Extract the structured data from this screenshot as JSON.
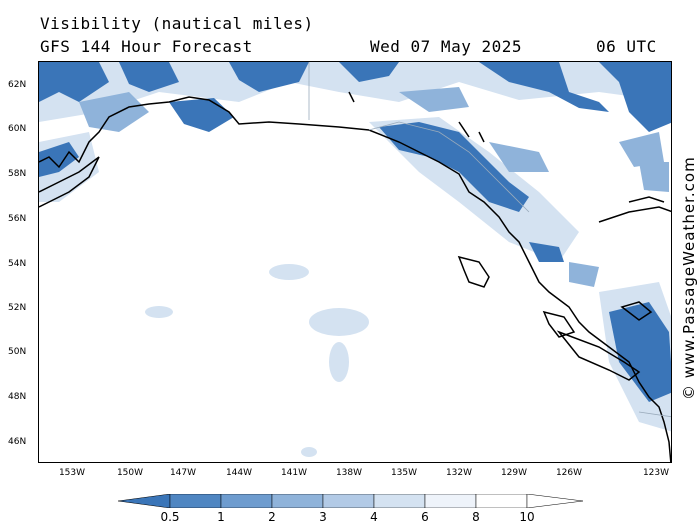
{
  "header": {
    "title": "Visibility (nautical miles)",
    "model": "GFS 144 Hour Forecast",
    "date": "Wed 07 May 2025",
    "time": "06 UTC"
  },
  "axes": {
    "lat_labels": [
      "62N",
      "60N",
      "58N",
      "56N",
      "54N",
      "52N",
      "50N",
      "48N",
      "46N"
    ],
    "lon_labels": [
      "153W",
      "150W",
      "147W",
      "144W",
      "141W",
      "138W",
      "135W",
      "132W",
      "129W",
      "126W",
      "123W"
    ]
  },
  "legend": {
    "values": [
      "0.5",
      "1",
      "2",
      "3",
      "4",
      "6",
      "8",
      "10"
    ],
    "colors": [
      "#3a75b8",
      "#4f86c2",
      "#6e9ccf",
      "#8fb3da",
      "#b2cae6",
      "#d4e2f1",
      "#eef3fa",
      "#ffffff"
    ]
  },
  "credit": "© www.PassageWeather.com",
  "colors": {
    "low_vis": "#3a75b8",
    "mid_vis": "#8fb3da",
    "light_vis": "#d4e2f1",
    "land_border": "#9ab"
  }
}
